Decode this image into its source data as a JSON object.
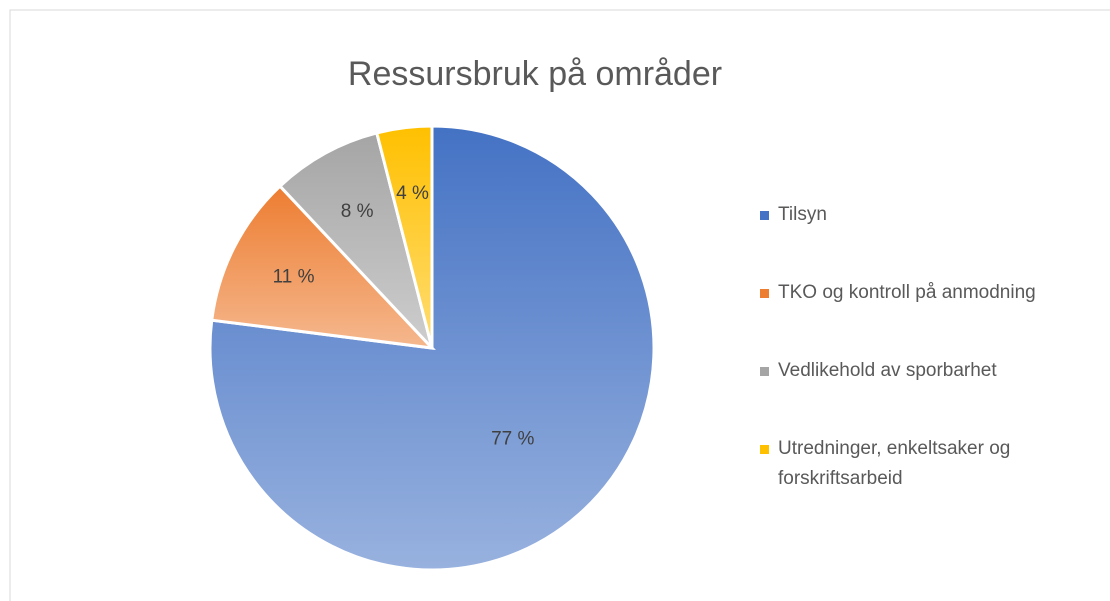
{
  "chart_data": {
    "type": "pie",
    "title": "Ressursbruk på områder",
    "categories": [
      "Tilsyn",
      "TKO og kontroll på anmodning",
      "Vedlikehold av sporbarhet",
      "Utredninger, enkeltsaker og forskriftsarbeid"
    ],
    "values": [
      77,
      11,
      8,
      4
    ],
    "value_labels": [
      "77 %",
      "11 %",
      "8 %",
      "4 %"
    ],
    "colors": [
      "#4472c4",
      "#ed7d31",
      "#a5a5a5",
      "#ffc000"
    ],
    "legend": "right"
  }
}
